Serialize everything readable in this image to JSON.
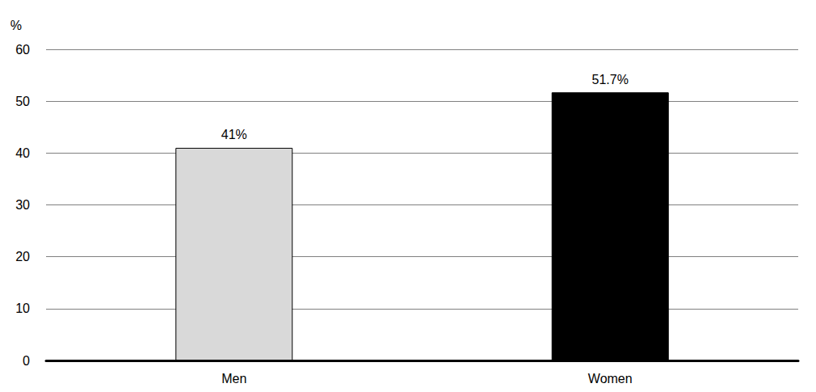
{
  "chart_data": {
    "type": "bar",
    "y_label": "%",
    "categories": [
      "Men",
      "Women"
    ],
    "values": [
      41,
      51.7
    ],
    "value_labels": [
      "41%",
      "51.7%"
    ],
    "colors": [
      "#d9d9d9",
      "#000000"
    ],
    "ylim": [
      0,
      60
    ],
    "yticks": [
      0,
      10,
      20,
      30,
      40,
      50,
      60
    ],
    "grid": true,
    "data_labels": true
  }
}
